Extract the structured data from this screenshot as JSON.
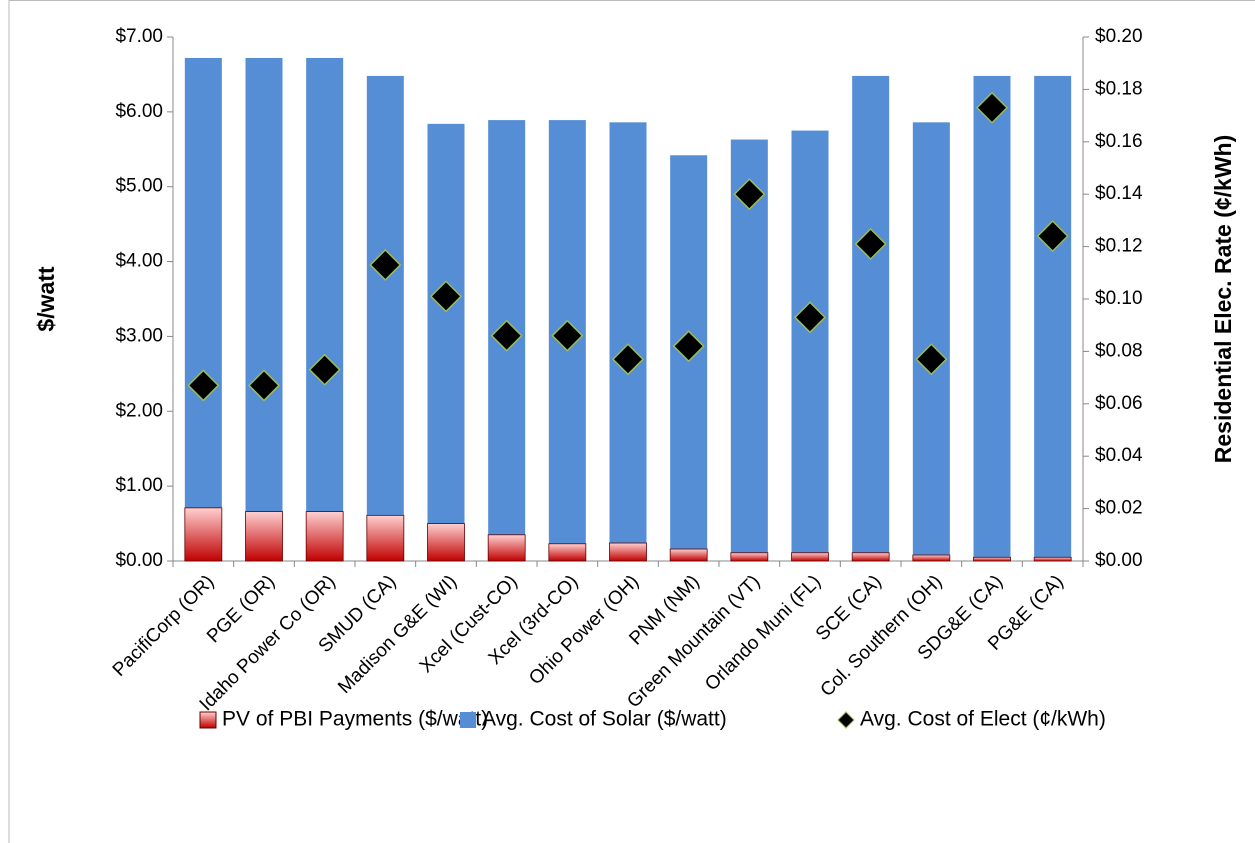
{
  "chart_data": {
    "type": "bar",
    "ylabel": "$/watt",
    "y2label": "Residential Elec. Rate (¢/kWh)",
    "categories": [
      "PacifiCorp (OR)",
      "PGE (OR)",
      "Idaho Power Co (OR)",
      "SMUD (CA)",
      "Madison G&E (WI)",
      "Xcel (Cust-CO)",
      "Xcel (3rd-CO)",
      "Ohio Power (OH)",
      "PNM (NM)",
      "Green Mountain (VT)",
      "Orlando Muni (FL)",
      "SCE (CA)",
      "Col. Southern (OH)",
      "SDG&E (CA)",
      "PG&E (CA)"
    ],
    "series": [
      {
        "name": "PV of PBI Payments ($/watt)",
        "color": "#c00000",
        "values": [
          0.71,
          0.66,
          0.66,
          0.61,
          0.5,
          0.35,
          0.23,
          0.24,
          0.16,
          0.11,
          0.11,
          0.11,
          0.08,
          0.05,
          0.05
        ]
      },
      {
        "name": "Avg. Cost of Solar ($/watt)",
        "color": "#558ed5",
        "values": [
          6.72,
          6.72,
          6.72,
          6.48,
          5.84,
          5.89,
          5.89,
          5.86,
          5.42,
          5.63,
          5.75,
          6.48,
          5.86,
          6.48,
          6.48
        ]
      },
      {
        "name": "Avg. Cost of Elect (¢/kWh)",
        "color": "#000000",
        "marker": "diamond",
        "axis": "y2",
        "values": [
          0.067,
          0.067,
          0.073,
          0.113,
          0.101,
          0.086,
          0.086,
          0.077,
          0.082,
          0.14,
          0.093,
          0.121,
          0.077,
          0.173,
          0.124
        ]
      }
    ],
    "ylim": [
      0,
      7
    ],
    "yticks": [
      {
        "value": 0,
        "label": "$0.00"
      },
      {
        "value": 1,
        "label": "$1.00"
      },
      {
        "value": 2,
        "label": "$2.00"
      },
      {
        "value": 3,
        "label": "$3.00"
      },
      {
        "value": 4,
        "label": "$4.00"
      },
      {
        "value": 5,
        "label": "$5.00"
      },
      {
        "value": 6,
        "label": "$6.00"
      },
      {
        "value": 7,
        "label": "$7.00"
      }
    ],
    "y2lim": [
      0,
      0.2
    ],
    "y2ticks": [
      {
        "value": 0,
        "label": "$0.00"
      },
      {
        "value": 0.02,
        "label": "$0.02"
      },
      {
        "value": 0.04,
        "label": "$0.04"
      },
      {
        "value": 0.06,
        "label": "$0.06"
      },
      {
        "value": 0.08,
        "label": "$0.08"
      },
      {
        "value": 0.1,
        "label": "$0.10"
      },
      {
        "value": 0.12,
        "label": "$0.12"
      },
      {
        "value": 0.14,
        "label": "$0.14"
      },
      {
        "value": 0.16,
        "label": "$0.16"
      },
      {
        "value": 0.18,
        "label": "$0.18"
      },
      {
        "value": 0.2,
        "label": "$0.20"
      }
    ],
    "legend": "bottom",
    "grid": false
  }
}
